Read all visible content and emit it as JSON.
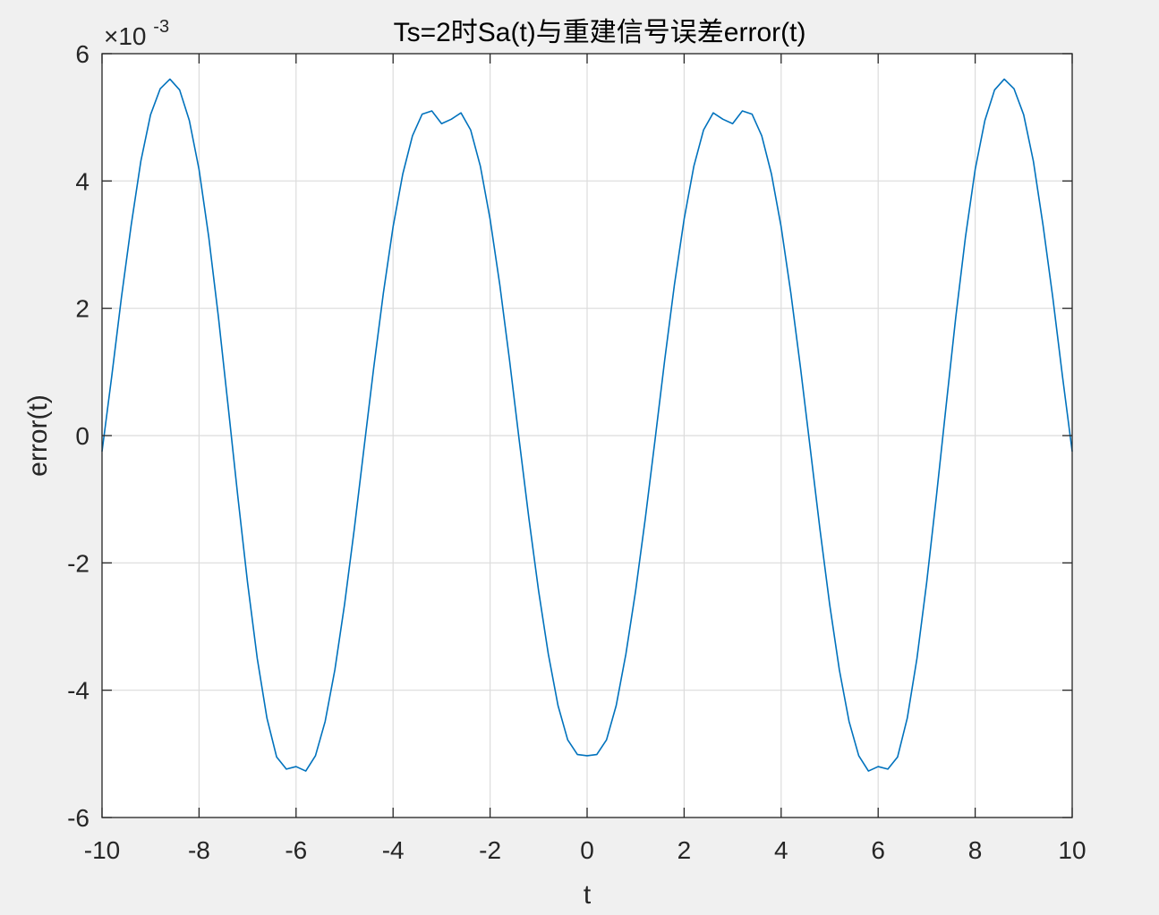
{
  "chart_data": {
    "type": "line",
    "title": "Ts=2时Sa(t)与重建信号误差error(t)",
    "xlabel": "t",
    "ylabel": "error(t)",
    "xlim": [
      -10,
      10
    ],
    "ylim": [
      -6,
      6
    ],
    "y_exponent_base": "×10",
    "y_exponent_power": "-3",
    "y_scale_note": "values in units of 10^-3",
    "x_ticks": [
      -10,
      -8,
      -6,
      -4,
      -2,
      0,
      2,
      4,
      6,
      8,
      10
    ],
    "x_tick_labels": [
      "-10",
      "-8",
      "-6",
      "-4",
      "-2",
      "0",
      "2",
      "4",
      "6",
      "8",
      "10"
    ],
    "y_ticks": [
      -6,
      -4,
      -2,
      0,
      2,
      4,
      6
    ],
    "y_tick_labels": [
      "-6",
      "-4",
      "-2",
      "0",
      "2",
      "4",
      "6"
    ],
    "grid": true,
    "line_color": "#0072bd",
    "grid_color": "#dcdcdc",
    "series": [
      {
        "x": [
          -10,
          -9.8,
          -9.6,
          -9.4,
          -9.2,
          -9.0,
          -8.8,
          -8.6,
          -8.4,
          -8.2,
          -8.0,
          -7.8,
          -7.6,
          -7.4,
          -7.2,
          -7.0,
          -6.8,
          -6.6,
          -6.4,
          -6.2,
          -6.0,
          -5.8,
          -5.6,
          -5.4,
          -5.2,
          -5.0,
          -4.8,
          -4.6,
          -4.4,
          -4.2,
          -4.0,
          -3.8,
          -3.6,
          -3.4,
          -3.2,
          -3.0,
          -2.8,
          -2.6,
          -2.4,
          -2.2,
          -2.0,
          -1.8,
          -1.6,
          -1.4,
          -1.2,
          -1.0,
          -0.8,
          -0.6,
          -0.4,
          -0.2,
          0.0,
          0.2,
          0.4,
          0.6,
          0.8,
          1.0,
          1.2,
          1.4,
          1.6,
          1.8,
          2.0,
          2.2,
          2.4,
          2.6,
          2.8,
          3.0,
          3.2,
          3.4,
          3.6,
          3.8,
          4.0,
          4.2,
          4.4,
          4.6,
          4.8,
          5.0,
          5.2,
          5.4,
          5.6,
          5.8,
          6.0,
          6.2,
          6.4,
          6.6,
          6.8,
          7.0,
          7.2,
          7.4,
          7.6,
          7.8,
          8.0,
          8.2,
          8.4,
          8.6,
          8.8,
          9.0,
          9.2,
          9.4,
          9.6,
          9.8,
          10.0
        ],
        "values": [
          -0.25,
          0.93,
          2.17,
          3.3,
          4.31,
          5.04,
          5.45,
          5.6,
          5.43,
          4.95,
          4.18,
          3.12,
          1.86,
          0.46,
          -0.96,
          -2.31,
          -3.5,
          -4.44,
          -5.05,
          -5.24,
          -5.2,
          -5.27,
          -5.03,
          -4.49,
          -3.68,
          -2.65,
          -1.47,
          -0.2,
          1.06,
          2.24,
          3.28,
          4.11,
          4.71,
          5.05,
          5.1,
          4.9,
          4.97,
          5.07,
          4.8,
          4.23,
          3.4,
          2.37,
          1.19,
          -0.07,
          -1.3,
          -2.44,
          -3.43,
          -4.24,
          -4.78,
          -5.01,
          -5.03,
          -5.01,
          -4.78,
          -4.24,
          -3.43,
          -2.44,
          -1.3,
          -0.07,
          1.19,
          2.37,
          3.4,
          4.23,
          4.8,
          5.07,
          4.97,
          4.9,
          5.1,
          5.05,
          4.71,
          4.11,
          3.28,
          2.24,
          1.06,
          -0.2,
          -1.47,
          -2.65,
          -3.68,
          -4.49,
          -5.03,
          -5.27,
          -5.2,
          -5.24,
          -5.05,
          -4.44,
          -3.5,
          -2.31,
          -0.96,
          0.46,
          1.86,
          3.12,
          4.18,
          4.95,
          5.43,
          5.6,
          5.45,
          5.04,
          4.31,
          3.3,
          2.17,
          0.93,
          -0.25
        ]
      }
    ]
  }
}
